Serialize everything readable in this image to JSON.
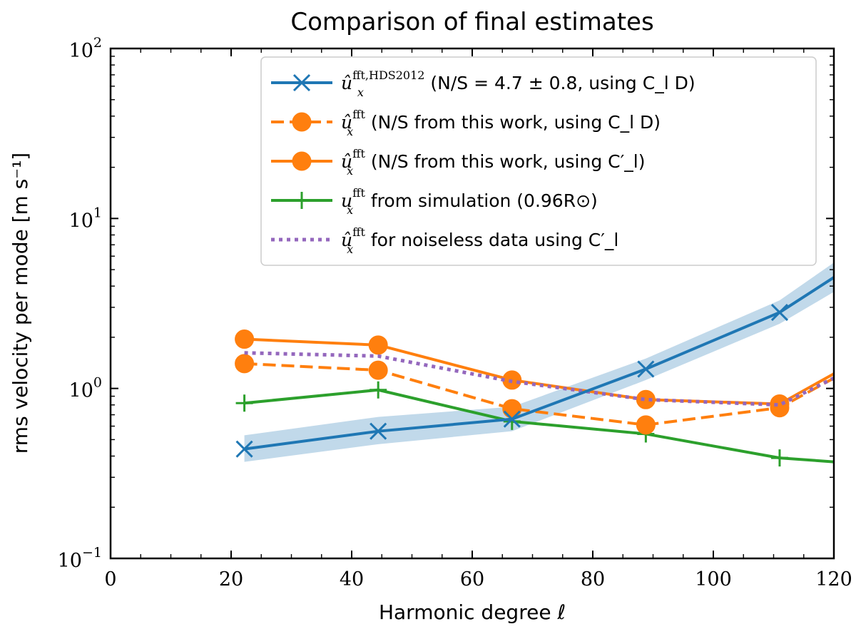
{
  "chart_data": {
    "type": "line",
    "title": "Comparison of final estimates",
    "xlabel": "Harmonic degree ℓ",
    "ylabel": "rms velocity per mode [m s⁻¹]",
    "xlim": [
      0,
      120
    ],
    "ylim": [
      0.1,
      100
    ],
    "yscale": "log",
    "grid": false,
    "legend_position": "top-right",
    "x_ticks": [
      "0",
      "20",
      "40",
      "60",
      "80",
      "100",
      "120"
    ],
    "y_ticks": [
      {
        "base": "10",
        "exp": "−1",
        "value": 0.1
      },
      {
        "base": "10",
        "exp": "0",
        "value": 1
      },
      {
        "base": "10",
        "exp": "1",
        "value": 10
      },
      {
        "base": "10",
        "exp": "2",
        "value": 100
      }
    ],
    "series": [
      {
        "key": "hds2012",
        "color": "#1f77b4",
        "linestyle": "solid",
        "marker": "x",
        "legend": {
          "math": "û",
          "sub": "x",
          "sup": "fft,HDS2012",
          "rest": " (N/S = 4.7 ± 0.8, using C_l D)"
        },
        "x": [
          22.2,
          44.4,
          66.6,
          88.8,
          111,
          120
        ],
        "y": [
          0.44,
          0.56,
          0.66,
          1.3,
          2.8,
          4.5
        ],
        "marker_count": 5,
        "band_low": [
          0.37,
          0.47,
          0.56,
          1.12,
          2.4,
          3.7
        ],
        "band_high": [
          0.53,
          0.68,
          0.78,
          1.5,
          3.3,
          5.5
        ]
      },
      {
        "key": "this_work_CD",
        "color": "#ff7f0e",
        "linestyle": "dashed",
        "marker": "o",
        "legend": {
          "math": "û",
          "sub": "x",
          "sup": "fft",
          "rest": " (N/S from this work, using C_l D)"
        },
        "x": [
          22.2,
          44.4,
          66.6,
          88.8,
          111,
          120
        ],
        "y": [
          1.4,
          1.28,
          0.76,
          0.61,
          0.77,
          1.15
        ],
        "marker_count": 5
      },
      {
        "key": "this_work_Cl",
        "color": "#ff7f0e",
        "linestyle": "solid",
        "marker": "o",
        "legend": {
          "math": "û",
          "sub": "x",
          "sup": "fft",
          "rest": " (N/S from this work, using C′_l)"
        },
        "x": [
          22.2,
          44.4,
          66.6,
          88.8,
          111,
          120
        ],
        "y": [
          1.95,
          1.8,
          1.12,
          0.86,
          0.81,
          1.22
        ],
        "marker_count": 5
      },
      {
        "key": "simulation",
        "color": "#2ca02c",
        "linestyle": "solid",
        "marker": "+",
        "legend": {
          "math": "u",
          "sub": "x",
          "sup": "fft",
          "rest": " from simulation (0.96R⊙)"
        },
        "x": [
          22.2,
          44.4,
          66.6,
          88.8,
          111,
          120
        ],
        "y": [
          0.82,
          0.98,
          0.64,
          0.54,
          0.39,
          0.37
        ],
        "marker_count": 5
      },
      {
        "key": "noiseless",
        "color": "#9467bd",
        "linestyle": "dotted",
        "marker": "none",
        "legend": {
          "math": "û",
          "sub": "x",
          "sup": "fft",
          "rest": " for noiseless data using C′_l"
        },
        "x": [
          22.2,
          44.4,
          66.6,
          88.8,
          111,
          120
        ],
        "y": [
          1.62,
          1.55,
          1.1,
          0.86,
          0.8,
          1.15
        ],
        "marker_count": 0
      }
    ]
  }
}
